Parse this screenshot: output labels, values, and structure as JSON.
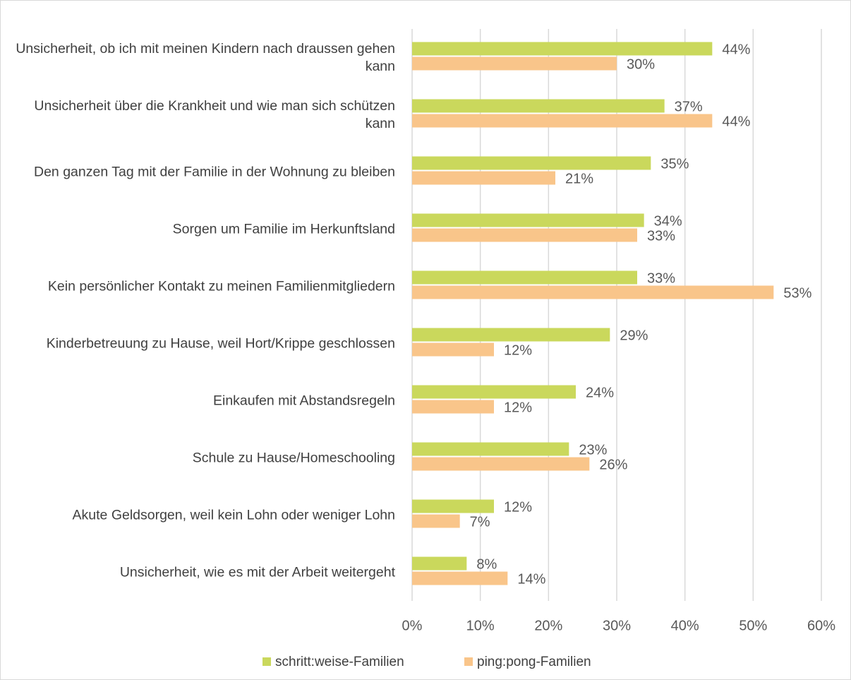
{
  "chart_data": {
    "type": "bar",
    "orientation": "horizontal",
    "categories": [
      "Unsicherheit, ob ich mit meinen Kindern nach draussen gehen kann",
      "Unsicherheit über die Krankheit und wie man sich schützen kann",
      "Den ganzen Tag mit der Familie in der Wohnung zu bleiben",
      "Sorgen um Familie im Herkunftsland",
      "Kein persönlicher Kontakt zu meinen Familienmitgliedern",
      "Kinderbetreuung zu Hause, weil Hort/Krippe geschlossen",
      "Einkaufen mit Abstandsregeln",
      "Schule zu Hause/Homeschooling",
      "Akute Geldsorgen, weil kein Lohn oder weniger Lohn",
      "Unsicherheit, wie es mit der Arbeit weitergeht"
    ],
    "series": [
      {
        "name": "schritt:weise-Familien",
        "color": "#cad85c",
        "values": [
          44,
          37,
          35,
          34,
          33,
          29,
          24,
          23,
          12,
          8
        ],
        "value_labels": [
          "44%",
          "37%",
          "35%",
          "34%",
          "33%",
          "29%",
          "24%",
          "23%",
          "12%",
          "8%"
        ]
      },
      {
        "name": "ping:pong-Familien",
        "color": "#f9c58a",
        "values": [
          30,
          44,
          21,
          33,
          53,
          12,
          12,
          26,
          7,
          14
        ],
        "value_labels": [
          "30%",
          "44%",
          "21%",
          "33%",
          "53%",
          "12%",
          "12%",
          "26%",
          "7%",
          "14%"
        ]
      }
    ],
    "xlim": [
      0,
      60
    ],
    "xticks": [
      {
        "value": 0,
        "label": "0%"
      },
      {
        "value": 10,
        "label": "10%"
      },
      {
        "value": 20,
        "label": "20%"
      },
      {
        "value": 30,
        "label": "30%"
      },
      {
        "value": 40,
        "label": "40%"
      },
      {
        "value": 50,
        "label": "50%"
      },
      {
        "value": 60,
        "label": "60%"
      }
    ],
    "grid": true,
    "legend": "bottom"
  }
}
